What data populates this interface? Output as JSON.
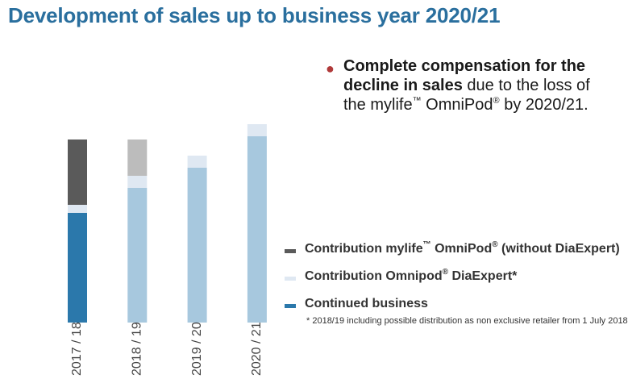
{
  "title": "Development of sales up to business year 2020/21",
  "bullet": {
    "bold_part": "Complete compensation for the decline in sales",
    "rest_part_1": " due to the loss of the mylife",
    "tm": "™",
    "rest_part_2": " OmniPod",
    "reg": "®",
    "rest_part_3": " by 2020/21."
  },
  "legend": [
    {
      "pre": "Contribution mylife",
      "mark": "™",
      "post": " OmniPod",
      "mark2": "®",
      "post2": " (without DiaExpert)",
      "color": "#5a5a5a"
    },
    {
      "pre": "Contribution Omnipod",
      "mark": "®",
      "post": " DiaExpert*",
      "mark2": "",
      "post2": "",
      "color": "#dfe8f2"
    },
    {
      "pre": "Continued business",
      "mark": "",
      "post": "",
      "mark2": "",
      "post2": "",
      "color": "#2b78ab"
    }
  ],
  "footnote": "* 2018/19 including possible distribution as non exclusive retailer from 1 July 2018",
  "chart_data": {
    "type": "bar",
    "stacked": true,
    "categories": [
      "2017 / 18",
      "2018 / 19",
      "2019 / 20",
      "2020 / 21"
    ],
    "series": [
      {
        "name": "Continued business",
        "values": [
          136,
          167,
          192,
          231
        ],
        "colors": [
          "#2b78ab",
          "#a7c8de",
          "#a7c8de",
          "#a7c8de"
        ]
      },
      {
        "name": "Contribution Omnipod® DiaExpert*",
        "values": [
          10,
          15,
          15,
          15
        ],
        "colors": [
          "#dfe8f2",
          "#dfe8f2",
          "#dfe8f2",
          "#dfe8f2"
        ]
      },
      {
        "name": "Contribution mylife™ OmniPod® (without DiaExpert)",
        "values": [
          81,
          45,
          0,
          0
        ],
        "colors": [
          "#5a5a5a",
          "#bcbcbc",
          "#bcbcbc",
          "#bcbcbc"
        ]
      }
    ],
    "ylim": [
      0,
      246
    ],
    "axis_visible": false
  }
}
